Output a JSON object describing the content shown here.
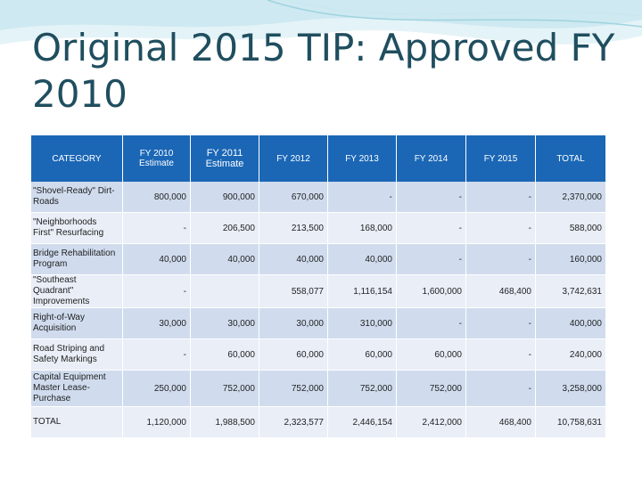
{
  "title": "Original 2015 TIP: Approved FY 2010",
  "colors": {
    "header_bg": "#1b67b6",
    "row_dark": "#d0dcee",
    "row_light": "#e9eef7",
    "title": "#1f4e5f"
  },
  "table": {
    "headers": [
      "CATEGORY",
      "FY 2010 Estimate",
      "FY 2011 Estimate",
      "FY 2012",
      "FY 2013",
      "FY 2014",
      "FY 2015",
      "TOTAL"
    ],
    "rows": [
      {
        "category": "\"Shovel-Ready\" Dirt-Roads",
        "values": [
          "800,000",
          "900,000",
          "670,000",
          "-",
          "-",
          "-",
          "2,370,000"
        ]
      },
      {
        "category": "\"Neighborhoods First\" Resurfacing",
        "values": [
          "-",
          "206,500",
          "213,500",
          "168,000",
          "-",
          "-",
          "588,000"
        ]
      },
      {
        "category": "Bridge Rehabilitation Program",
        "values": [
          "40,000",
          "40,000",
          "40,000",
          "40,000",
          "-",
          "-",
          "160,000"
        ]
      },
      {
        "category": "\"Southeast Quadrant\" Improvements",
        "values": [
          "-",
          "",
          "558,077",
          "1,116,154",
          "1,600,000",
          "468,400",
          "3,742,631"
        ]
      },
      {
        "category": "Right-of-Way Acquisition",
        "values": [
          "30,000",
          "30,000",
          "30,000",
          "310,000",
          "-",
          "-",
          "400,000"
        ]
      },
      {
        "category": "Road Striping and Safety Markings",
        "values": [
          "-",
          "60,000",
          "60,000",
          "60,000",
          "60,000",
          "-",
          "240,000"
        ]
      },
      {
        "category": "Capital Equipment Master Lease-Purchase",
        "values": [
          "250,000",
          "752,000",
          "752,000",
          "752,000",
          "752,000",
          "-",
          "3,258,000"
        ]
      },
      {
        "category": "TOTAL",
        "values": [
          "1,120,000",
          "1,988,500",
          "2,323,577",
          "2,446,154",
          "2,412,000",
          "468,400",
          "10,758,631"
        ]
      }
    ]
  }
}
